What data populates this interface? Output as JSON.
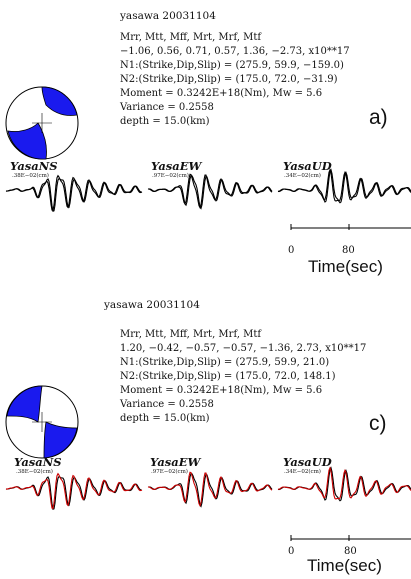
{
  "panels": [
    {
      "title": "yasawa 20031104",
      "header": "Mrr,  Mtt,  Mff,  Mrt,  Mrf,  Mtf",
      "values": "−1.06, 0.56, 0.71, 0.57, 1.36, −2.73, x10**17",
      "n1": "N1:(Strike,Dip,Slip) = (275.9, 59.9, −159.0)",
      "n2": "N2:(Strike,Dip,Slip) = (175.0, 72.0, −31.9)",
      "moment": "Moment = 0.3242E+18(Nm), Mw = 5.6",
      "variance": "Variance =    0.2558",
      "depth": "depth =   15.0(km)",
      "label": "a)",
      "stations": [
        "YasaNS",
        "YasaEW",
        "YasaUD"
      ],
      "amplitudes": [
        ".38E−02(cm)",
        ".97E−02(cm)",
        ".34E−02(cm)"
      ],
      "synthetic_color": "#000000"
    },
    {
      "title": "yasawa 20031104",
      "header": "Mrr,  Mtt,  Mff,  Mrt,  Mrf,  Mtf",
      "values": "1.20, −0.42, −0.57, −0.57, −1.36, 2.73, x10**17",
      "n1": "N1:(Strike,Dip,Slip) = (275.9, 59.9,   21.0)",
      "n2": "N2:(Strike,Dip,Slip) = (175.0, 72.0, 148.1)",
      "moment": "Moment = 0.3242E+18(Nm), Mw = 5.6",
      "variance": "Variance =    0.2558",
      "depth": "depth =   15.0(km)",
      "label": "c)",
      "stations": [
        "YasaNS",
        "YasaEW",
        "YasaUD"
      ],
      "amplitudes": [
        ".38E−02(cm)",
        ".97E−02(cm)",
        ".34E−02(cm)"
      ],
      "synthetic_color": "#cc0000"
    }
  ],
  "time_axis": {
    "title": "Time(sec)",
    "ticks": [
      "0",
      "80"
    ]
  },
  "colors": {
    "beachball_fill": "#1a1aee",
    "observed": "#000000"
  }
}
